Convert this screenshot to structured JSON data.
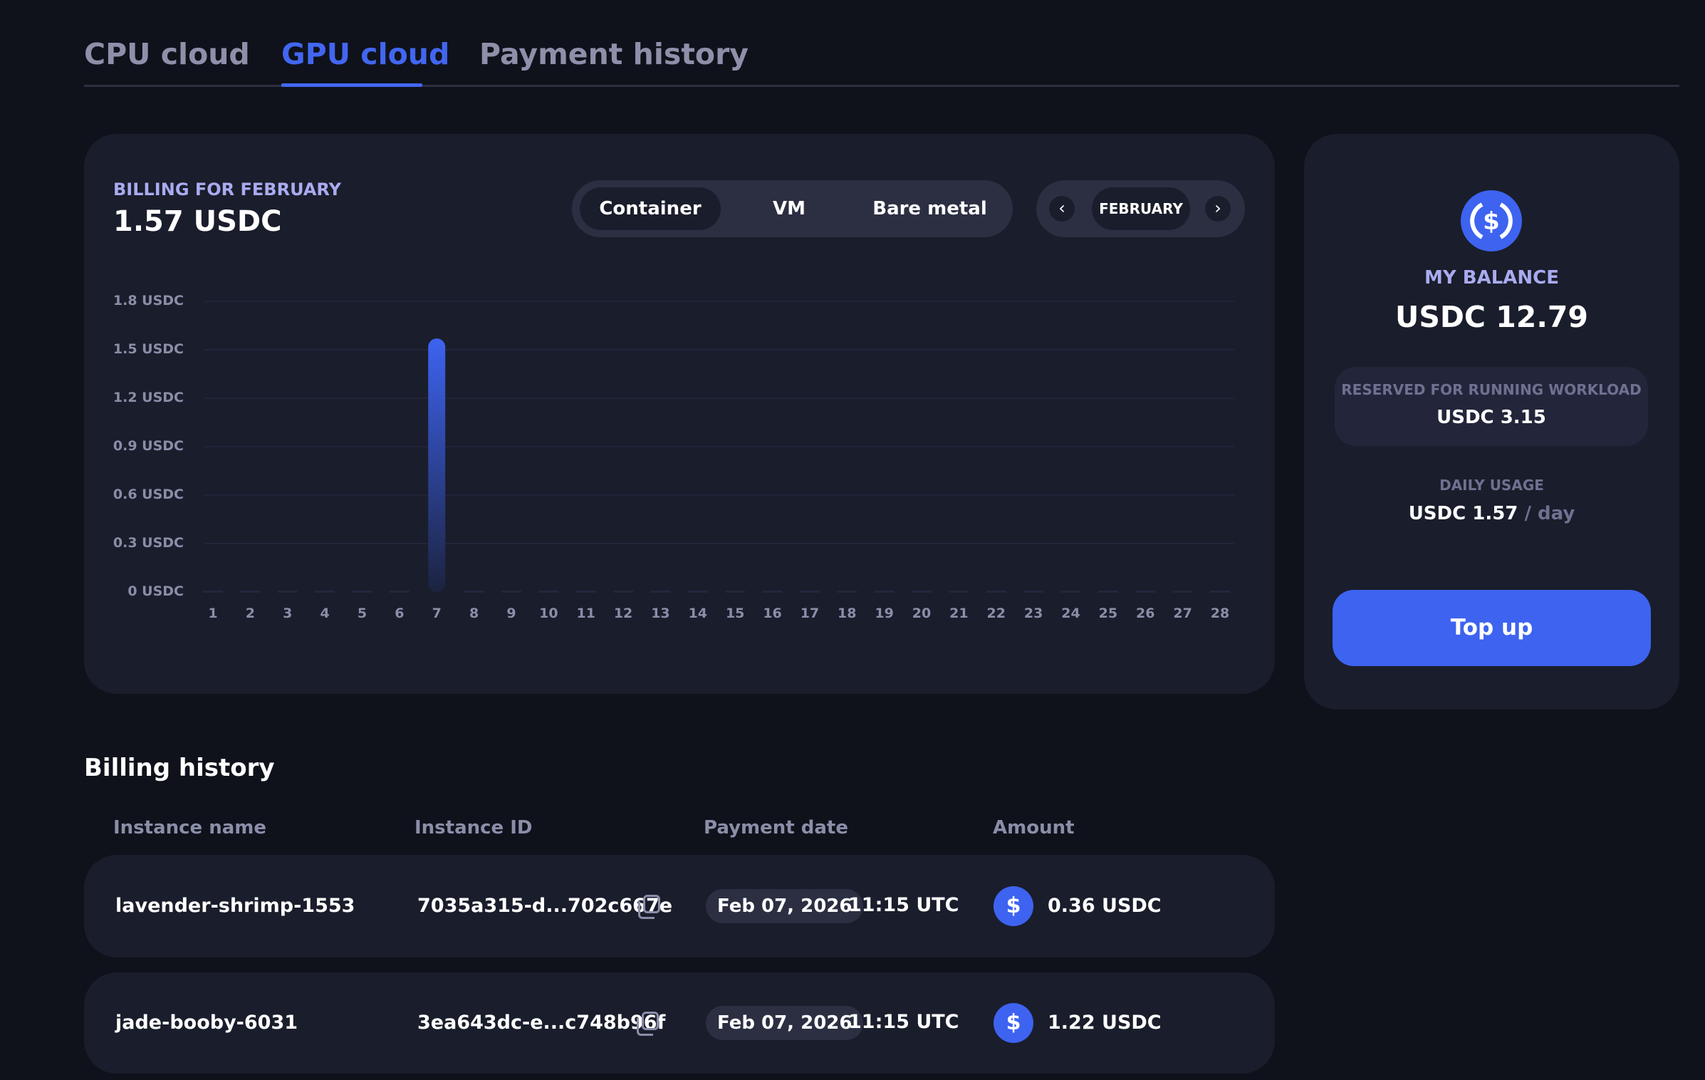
{
  "tabs": [
    {
      "label": "CPU cloud",
      "active": false
    },
    {
      "label": "GPU cloud",
      "active": true
    },
    {
      "label": "Payment history",
      "active": false
    }
  ],
  "billing": {
    "label": "BILLING FOR FEBRUARY",
    "total": "1.57 USDC",
    "segments": [
      {
        "label": "Container",
        "active": true
      },
      {
        "label": "VM",
        "active": false
      },
      {
        "label": "Bare metal",
        "active": false
      }
    ],
    "month": "FEBRUARY",
    "prev_icon": "chevron-left-icon",
    "next_icon": "chevron-right-icon"
  },
  "chart_data": {
    "type": "bar",
    "categories": [
      "1",
      "2",
      "3",
      "4",
      "5",
      "6",
      "7",
      "8",
      "9",
      "10",
      "11",
      "12",
      "13",
      "14",
      "15",
      "16",
      "17",
      "18",
      "19",
      "20",
      "21",
      "22",
      "23",
      "24",
      "25",
      "26",
      "27",
      "28"
    ],
    "values": [
      0,
      0,
      0,
      0,
      0,
      0,
      1.57,
      0,
      0,
      0,
      0,
      0,
      0,
      0,
      0,
      0,
      0,
      0,
      0,
      0,
      0,
      0,
      0,
      0,
      0,
      0,
      0,
      0
    ],
    "yticks": [
      "0 USDC",
      "0.3 USDC",
      "0.6 USDC",
      "0.9 USDC",
      "1.2 USDC",
      "1.5 USDC",
      "1.8 USDC"
    ],
    "ylim": [
      0,
      1.8
    ],
    "grid": true,
    "bar_color": "#3d63f0"
  },
  "balance": {
    "icon": "usdc-coin-icon",
    "label": "MY BALANCE",
    "value": "USDC 12.79",
    "reserved_label": "RESERVED FOR RUNNING WORKLOAD",
    "reserved_value": "USDC 3.15",
    "daily_label": "DAILY USAGE",
    "daily_value": "USDC 1.57",
    "daily_unit": "/ day",
    "topup": "Top up"
  },
  "history": {
    "title": "Billing history",
    "columns": [
      "Instance name",
      "Instance ID",
      "Payment date",
      "Amount"
    ],
    "rows": [
      {
        "name": "lavender-shrimp-1553",
        "id": "7035a315-d...702c667e",
        "date": "Feb 07, 2026",
        "time": "11:15 UTC",
        "amount": "0.36 USDC"
      },
      {
        "name": "jade-booby-6031",
        "id": "3ea643dc-e...c748b96f",
        "date": "Feb 07, 2026",
        "time": "11:15 UTC",
        "amount": "1.22 USDC"
      }
    ]
  },
  "colors": {
    "accent": "#3d63f0",
    "background": "#0f121b",
    "card": "#1a1d2b"
  }
}
